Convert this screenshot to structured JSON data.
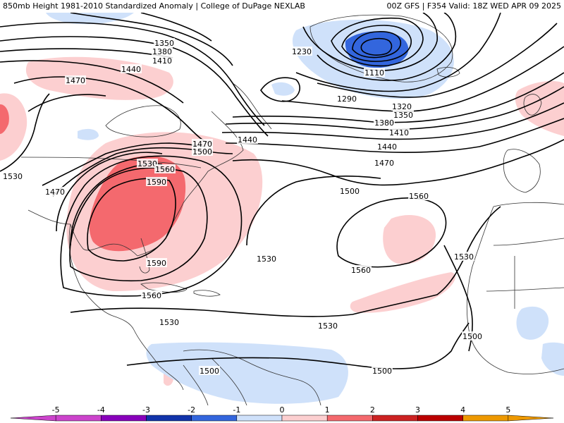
{
  "header": {
    "left_title": "850mb Height 1981-2010 Standardized Anomaly | College of DuPage NEXLAB",
    "right_title": "00Z GFS | F354 Valid: 18Z WED APR 09 2025"
  },
  "colors": {
    "neg5": "#cc44cc",
    "neg4": "#8800bb",
    "neg3": "#1133aa",
    "neg2": "#3366dd",
    "neg1": "#cfe1fa",
    "zero": "#ffffff",
    "pos1": "#fccfd0",
    "pos2": "#f4696e",
    "pos3": "#cc2222",
    "pos4": "#bb0000",
    "pos5": "#ee9900",
    "contour": "#000000",
    "coast": "#333333"
  },
  "contour_labels": [
    {
      "id": "c1350a",
      "text": "1350"
    },
    {
      "id": "c1380a",
      "text": "1380"
    },
    {
      "id": "c1410a",
      "text": "1410"
    },
    {
      "id": "c1440a",
      "text": "1440"
    },
    {
      "id": "c1470a",
      "text": "1470"
    },
    {
      "id": "c1530a",
      "text": "1530"
    },
    {
      "id": "c1470b",
      "text": "1470"
    },
    {
      "id": "c1530b",
      "text": "1530"
    },
    {
      "id": "c1560a",
      "text": "1560"
    },
    {
      "id": "c1590a",
      "text": "1590"
    },
    {
      "id": "c1470c",
      "text": "1470"
    },
    {
      "id": "c1440b",
      "text": "1440"
    },
    {
      "id": "c1500a",
      "text": "1500"
    },
    {
      "id": "c1590b",
      "text": "1590"
    },
    {
      "id": "c1560b",
      "text": "1560"
    },
    {
      "id": "c1530c",
      "text": "1530"
    },
    {
      "id": "c1230",
      "text": "1230"
    },
    {
      "id": "c1110",
      "text": "1110"
    },
    {
      "id": "c1290",
      "text": "1290"
    },
    {
      "id": "c1320",
      "text": "1320"
    },
    {
      "id": "c1350b",
      "text": "1350"
    },
    {
      "id": "c1380b",
      "text": "1380"
    },
    {
      "id": "c1410b",
      "text": "1410"
    },
    {
      "id": "c1440c",
      "text": "1440"
    },
    {
      "id": "c1470d",
      "text": "1470"
    },
    {
      "id": "c1500b",
      "text": "1500"
    },
    {
      "id": "c1560c",
      "text": "1560"
    },
    {
      "id": "c1530d",
      "text": "1530"
    },
    {
      "id": "c1560d",
      "text": "1560"
    },
    {
      "id": "c1530e",
      "text": "1530"
    },
    {
      "id": "c1530f",
      "text": "1530"
    },
    {
      "id": "c1500c",
      "text": "1500"
    },
    {
      "id": "c1500d",
      "text": "1500"
    },
    {
      "id": "c1500e",
      "text": "1500"
    }
  ],
  "colorbar": {
    "ticks": [
      "-5",
      "-4",
      "-3",
      "-2",
      "-1",
      "0",
      "1",
      "2",
      "3",
      "4",
      "5"
    ]
  }
}
